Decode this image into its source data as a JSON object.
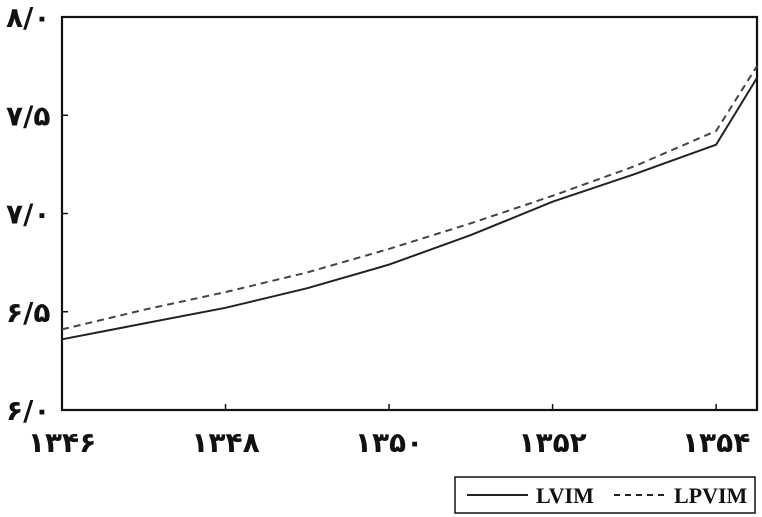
{
  "chart_data": {
    "type": "line",
    "title": "",
    "xlabel": "",
    "ylabel": "",
    "x": [
      1346,
      1347,
      1348,
      1349,
      1350,
      1351,
      1352,
      1353,
      1354,
      1354.5
    ],
    "xlim": [
      1346,
      1354.5
    ],
    "ylim": [
      6.0,
      8.0
    ],
    "xtick_values": [
      1346,
      1348,
      1350,
      1352,
      1354
    ],
    "xtick_labels": [
      "۱۳۴۶",
      "۱۳۴۸",
      "۱۳۵۰",
      "۱۳۵۲",
      "۱۳۵۴"
    ],
    "ytick_values": [
      6.0,
      6.5,
      7.0,
      7.5,
      8.0
    ],
    "ytick_labels": [
      "۶/۰",
      "۶/۵",
      "۷/۰",
      "۷/۵",
      "۸/۰"
    ],
    "series": [
      {
        "name": "LVIM",
        "style": "solid",
        "color": "#222222",
        "values": [
          6.36,
          6.44,
          6.52,
          6.62,
          6.74,
          6.89,
          7.06,
          7.2,
          7.35,
          7.69
        ]
      },
      {
        "name": "LPVIM",
        "style": "dashed",
        "color": "#444444",
        "values": [
          6.41,
          6.51,
          6.6,
          6.7,
          6.82,
          6.95,
          7.09,
          7.24,
          7.42,
          7.75
        ]
      }
    ],
    "legend": {
      "position": "bottom-right",
      "entries": [
        "LVIM",
        "LPVIM"
      ]
    },
    "grid": false
  }
}
